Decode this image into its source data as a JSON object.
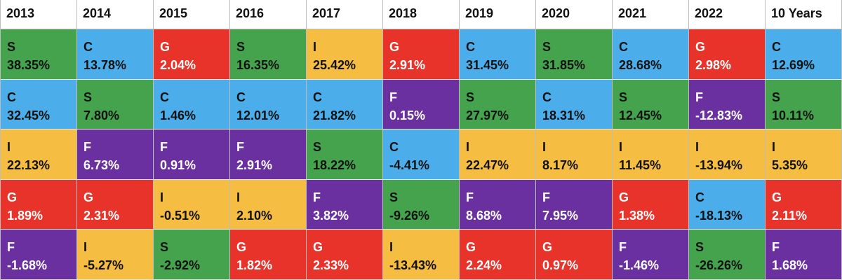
{
  "chart_data": {
    "type": "table",
    "columns": [
      "2013",
      "2014",
      "2015",
      "2016",
      "2017",
      "2018",
      "2019",
      "2020",
      "2021",
      "2022",
      "10 Years"
    ],
    "fund_colors": {
      "S": "#45a34e",
      "C": "#4baeea",
      "G": "#e8332a",
      "I": "#f5bd42",
      "F": "#6b30a0"
    },
    "ranks": [
      [
        {
          "fund": "S",
          "value": "38.35%"
        },
        {
          "fund": "C",
          "value": "13.78%"
        },
        {
          "fund": "G",
          "value": "2.04%"
        },
        {
          "fund": "S",
          "value": "16.35%"
        },
        {
          "fund": "I",
          "value": "25.42%"
        },
        {
          "fund": "G",
          "value": "2.91%"
        },
        {
          "fund": "C",
          "value": "31.45%"
        },
        {
          "fund": "S",
          "value": "31.85%"
        },
        {
          "fund": "C",
          "value": "28.68%"
        },
        {
          "fund": "G",
          "value": "2.98%"
        },
        {
          "fund": "C",
          "value": "12.69%"
        }
      ],
      [
        {
          "fund": "C",
          "value": "32.45%"
        },
        {
          "fund": "S",
          "value": "7.80%"
        },
        {
          "fund": "C",
          "value": "1.46%"
        },
        {
          "fund": "C",
          "value": "12.01%"
        },
        {
          "fund": "C",
          "value": "21.82%"
        },
        {
          "fund": "F",
          "value": "0.15%"
        },
        {
          "fund": "S",
          "value": "27.97%"
        },
        {
          "fund": "C",
          "value": "18.31%"
        },
        {
          "fund": "S",
          "value": "12.45%"
        },
        {
          "fund": "F",
          "value": "-12.83%"
        },
        {
          "fund": "S",
          "value": "10.11%"
        }
      ],
      [
        {
          "fund": "I",
          "value": "22.13%"
        },
        {
          "fund": "F",
          "value": "6.73%"
        },
        {
          "fund": "F",
          "value": "0.91%"
        },
        {
          "fund": "F",
          "value": "2.91%"
        },
        {
          "fund": "S",
          "value": "18.22%"
        },
        {
          "fund": "C",
          "value": "-4.41%"
        },
        {
          "fund": "I",
          "value": "22.47%"
        },
        {
          "fund": "I",
          "value": "8.17%"
        },
        {
          "fund": "I",
          "value": "11.45%"
        },
        {
          "fund": "I",
          "value": "-13.94%"
        },
        {
          "fund": "I",
          "value": "5.35%"
        }
      ],
      [
        {
          "fund": "G",
          "value": "1.89%"
        },
        {
          "fund": "G",
          "value": "2.31%"
        },
        {
          "fund": "I",
          "value": "-0.51%"
        },
        {
          "fund": "I",
          "value": "2.10%"
        },
        {
          "fund": "F",
          "value": "3.82%"
        },
        {
          "fund": "S",
          "value": "-9.26%"
        },
        {
          "fund": "F",
          "value": "8.68%"
        },
        {
          "fund": "F",
          "value": "7.95%"
        },
        {
          "fund": "G",
          "value": "1.38%"
        },
        {
          "fund": "C",
          "value": "-18.13%"
        },
        {
          "fund": "G",
          "value": "2.11%"
        }
      ],
      [
        {
          "fund": "F",
          "value": "-1.68%"
        },
        {
          "fund": "I",
          "value": "-5.27%"
        },
        {
          "fund": "S",
          "value": "-2.92%"
        },
        {
          "fund": "G",
          "value": "1.82%"
        },
        {
          "fund": "G",
          "value": "2.33%"
        },
        {
          "fund": "I",
          "value": "-13.43%"
        },
        {
          "fund": "G",
          "value": "2.24%"
        },
        {
          "fund": "G",
          "value": "0.97%"
        },
        {
          "fund": "F",
          "value": "-1.46%"
        },
        {
          "fund": "S",
          "value": "-26.26%"
        },
        {
          "fund": "F",
          "value": "1.68%"
        }
      ]
    ]
  }
}
